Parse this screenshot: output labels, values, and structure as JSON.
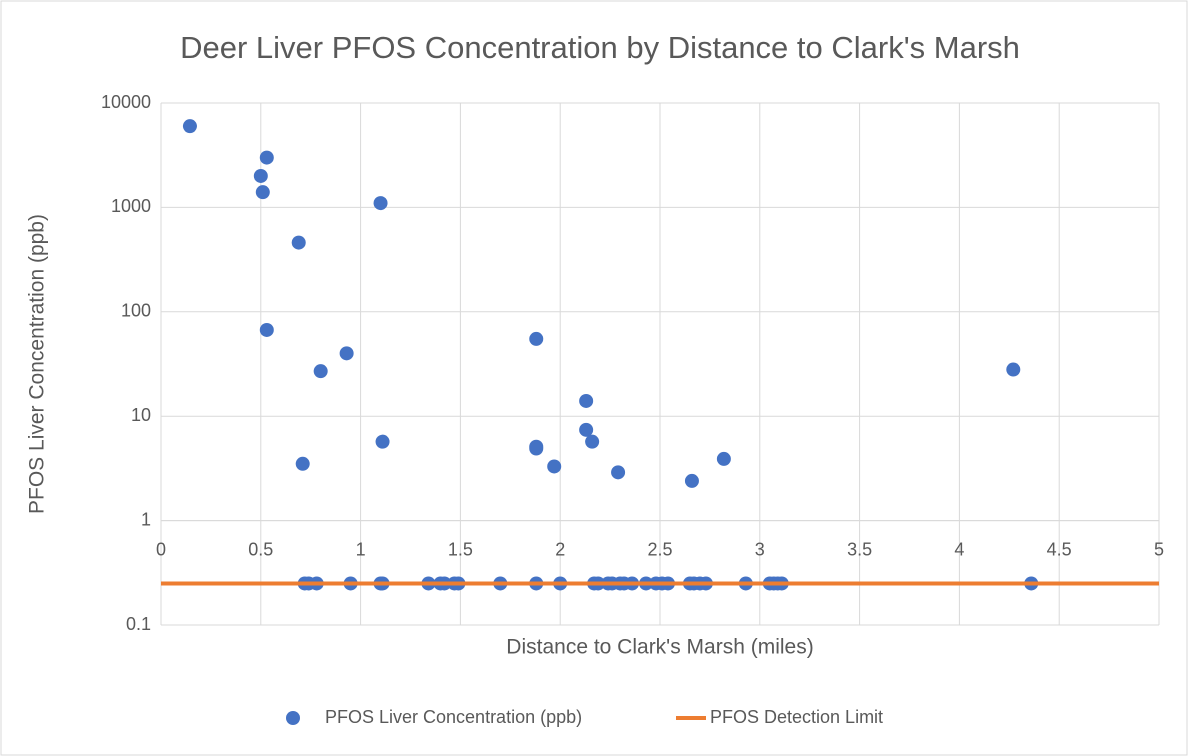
{
  "chart_data": {
    "type": "scatter",
    "title": "Deer Liver PFOS Concentration by Distance to Clark's Marsh",
    "x_label": "Distance to Clark's Marsh (miles)",
    "y_label": "PFOS Liver Concentration (ppb)",
    "xlim": [
      0,
      5
    ],
    "xticks": [
      0,
      0.5,
      1,
      1.5,
      2,
      2.5,
      3,
      3.5,
      4,
      4.5,
      5
    ],
    "ylim": [
      0.1,
      10000
    ],
    "yticks": [
      0.1,
      1,
      10,
      100,
      1000,
      10000
    ],
    "y_log": true,
    "grid": true,
    "x_axis_crosses_at": 1,
    "legend": "bottom",
    "series": [
      {
        "name": "PFOS Liver Concentration (ppb)",
        "type": "scatter",
        "color": "#4472c4",
        "x": [
          0.145,
          0.53,
          0.5,
          0.51,
          1.1,
          0.69,
          0.53,
          0.93,
          0.8,
          0.71,
          1.11,
          1.88,
          1.88,
          1.88,
          1.97,
          2.13,
          2.13,
          2.16,
          2.29,
          2.66,
          2.82,
          4.27,
          0.72,
          0.74,
          0.78,
          0.95,
          1.1,
          1.11,
          1.34,
          1.4,
          1.42,
          1.47,
          1.49,
          1.7,
          1.88,
          2.0,
          2.17,
          2.19,
          2.24,
          2.26,
          2.3,
          2.32,
          2.36,
          2.43,
          2.48,
          2.51,
          2.54,
          2.65,
          2.67,
          2.7,
          2.73,
          2.93,
          3.05,
          3.07,
          3.09,
          3.11,
          4.36
        ],
        "values": [
          6000,
          3000,
          2000,
          1400,
          1100,
          460,
          67,
          40,
          27,
          3.5,
          5.7,
          55,
          5.1,
          4.9,
          3.3,
          14,
          7.4,
          5.7,
          2.9,
          2.4,
          3.9,
          28,
          0.25,
          0.25,
          0.25,
          0.25,
          0.25,
          0.25,
          0.25,
          0.25,
          0.25,
          0.25,
          0.25,
          0.25,
          0.25,
          0.25,
          0.25,
          0.25,
          0.25,
          0.25,
          0.25,
          0.25,
          0.25,
          0.25,
          0.25,
          0.25,
          0.25,
          0.25,
          0.25,
          0.25,
          0.25,
          0.25,
          0.25,
          0.25,
          0.25,
          0.25,
          0.25
        ]
      },
      {
        "name": "PFOS Detection Limit",
        "type": "line",
        "color": "#ed7d31",
        "x": [
          0,
          5
        ],
        "values": [
          0.25,
          0.25
        ]
      }
    ]
  }
}
